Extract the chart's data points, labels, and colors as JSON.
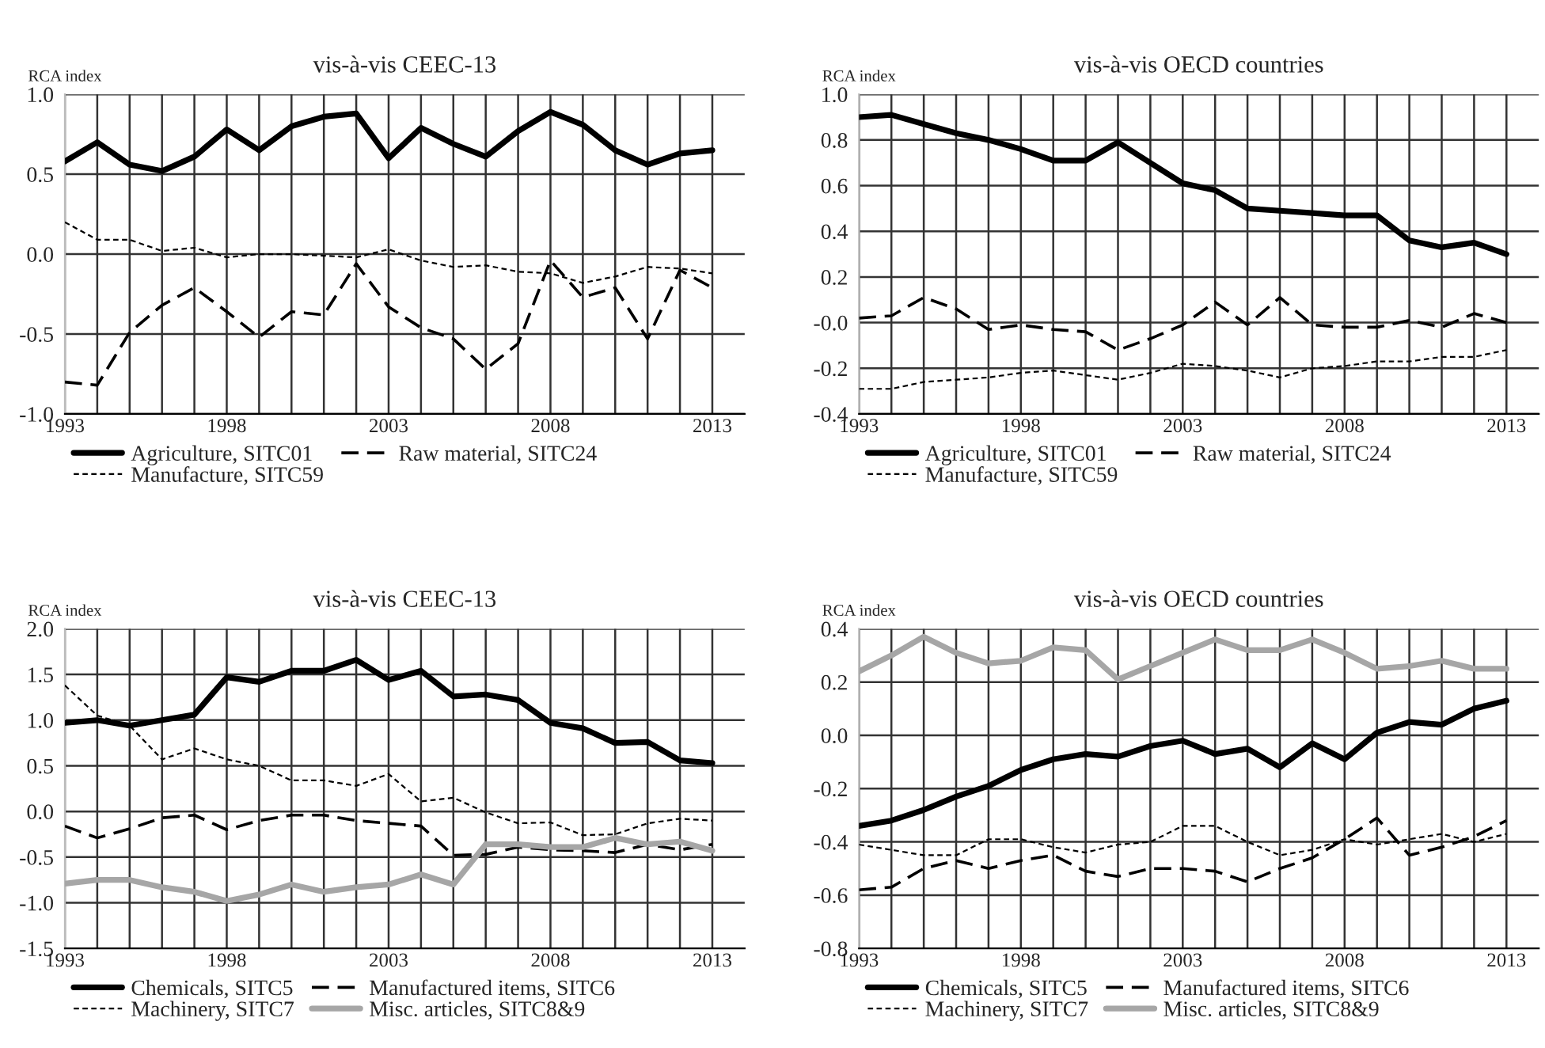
{
  "chart_data": [
    {
      "type": "line",
      "title": "vis-à-vis CEEC-13",
      "ylabel": "RCA index",
      "x": [
        1993,
        1994,
        1995,
        1996,
        1997,
        1998,
        1999,
        2000,
        2001,
        2002,
        2003,
        2004,
        2005,
        2006,
        2007,
        2008,
        2009,
        2010,
        2011,
        2012,
        2013
      ],
      "xlim": [
        1993,
        2014
      ],
      "xticks": [
        {
          "value": 1993,
          "label": "1993"
        },
        {
          "value": 1994,
          "label": null
        },
        {
          "value": 1995,
          "label": null
        },
        {
          "value": 1996,
          "label": null
        },
        {
          "value": 1997,
          "label": null
        },
        {
          "value": 1998,
          "label": "1998"
        },
        {
          "value": 1999,
          "label": null
        },
        {
          "value": 2000,
          "label": null
        },
        {
          "value": 2001,
          "label": null
        },
        {
          "value": 2002,
          "label": null
        },
        {
          "value": 2003,
          "label": "2003"
        },
        {
          "value": 2004,
          "label": null
        },
        {
          "value": 2005,
          "label": null
        },
        {
          "value": 2006,
          "label": null
        },
        {
          "value": 2007,
          "label": null
        },
        {
          "value": 2008,
          "label": "2008"
        },
        {
          "value": 2009,
          "label": null
        },
        {
          "value": 2010,
          "label": null
        },
        {
          "value": 2011,
          "label": null
        },
        {
          "value": 2012,
          "label": null
        },
        {
          "value": 2013,
          "label": "2013"
        }
      ],
      "ylim": [
        -1.0,
        1.0
      ],
      "yticks": [
        {
          "value": -1.0,
          "label": "-1.0"
        },
        {
          "value": -0.5,
          "label": "-0.5"
        },
        {
          "value": 0.0,
          "label": "0.0"
        },
        {
          "value": 0.5,
          "label": "0.5"
        },
        {
          "value": 1.0,
          "label": "1.0"
        }
      ],
      "grid": true,
      "legend": "bottom",
      "series": [
        {
          "name": "Agriculture, SITC01",
          "color": "#000000",
          "line_style": "solid",
          "values": [
            0.58,
            0.7,
            0.56,
            0.52,
            0.61,
            0.78,
            0.65,
            0.8,
            0.86,
            0.88,
            0.6,
            0.79,
            0.69,
            0.61,
            0.77,
            0.89,
            0.81,
            0.65,
            0.56,
            0.63,
            0.65
          ]
        },
        {
          "name": "Raw material, SITC24",
          "color": "#000000",
          "line_style": "dashed",
          "values": [
            -0.8,
            -0.82,
            -0.49,
            -0.32,
            -0.21,
            -0.36,
            -0.52,
            -0.36,
            -0.38,
            -0.06,
            -0.33,
            -0.46,
            -0.53,
            -0.72,
            -0.56,
            -0.04,
            -0.27,
            -0.21,
            -0.53,
            -0.1,
            -0.21
          ]
        },
        {
          "name": "Manufacture, SITC59",
          "color": "#000000",
          "line_style": "dotted",
          "values": [
            0.2,
            0.09,
            0.09,
            0.02,
            0.04,
            -0.02,
            0.0,
            0.0,
            -0.01,
            -0.02,
            0.03,
            -0.04,
            -0.08,
            -0.07,
            -0.11,
            -0.12,
            -0.18,
            -0.14,
            -0.08,
            -0.09,
            -0.12
          ]
        }
      ]
    },
    {
      "type": "line",
      "title": "vis-à-vis OECD countries",
      "ylabel": "RCA index",
      "x": [
        1993,
        1994,
        1995,
        1996,
        1997,
        1998,
        1999,
        2000,
        2001,
        2002,
        2003,
        2004,
        2005,
        2006,
        2007,
        2008,
        2009,
        2010,
        2011,
        2012,
        2013
      ],
      "xlim": [
        1993,
        2014
      ],
      "xticks": [
        {
          "value": 1993,
          "label": "1993"
        },
        {
          "value": 1994,
          "label": null
        },
        {
          "value": 1995,
          "label": null
        },
        {
          "value": 1996,
          "label": null
        },
        {
          "value": 1997,
          "label": null
        },
        {
          "value": 1998,
          "label": "1998"
        },
        {
          "value": 1999,
          "label": null
        },
        {
          "value": 2000,
          "label": null
        },
        {
          "value": 2001,
          "label": null
        },
        {
          "value": 2002,
          "label": null
        },
        {
          "value": 2003,
          "label": "2003"
        },
        {
          "value": 2004,
          "label": null
        },
        {
          "value": 2005,
          "label": null
        },
        {
          "value": 2006,
          "label": null
        },
        {
          "value": 2007,
          "label": null
        },
        {
          "value": 2008,
          "label": "2008"
        },
        {
          "value": 2009,
          "label": null
        },
        {
          "value": 2010,
          "label": null
        },
        {
          "value": 2011,
          "label": null
        },
        {
          "value": 2012,
          "label": null
        },
        {
          "value": 2013,
          "label": "2013"
        }
      ],
      "ylim": [
        -0.4,
        1.0
      ],
      "yticks": [
        {
          "value": -0.4,
          "label": "-0.4"
        },
        {
          "value": -0.2,
          "label": "-0.2"
        },
        {
          "value": 0.0,
          "label": "-0.0"
        },
        {
          "value": 0.2,
          "label": "0.2"
        },
        {
          "value": 0.4,
          "label": "0.4"
        },
        {
          "value": 0.6,
          "label": "0.6"
        },
        {
          "value": 0.8,
          "label": "0.8"
        },
        {
          "value": 1.0,
          "label": "1.0"
        }
      ],
      "grid": true,
      "legend": "bottom",
      "series": [
        {
          "name": "Agriculture, SITC01",
          "color": "#000000",
          "line_style": "solid",
          "values": [
            0.9,
            0.91,
            0.87,
            0.83,
            0.8,
            0.76,
            0.71,
            0.71,
            0.79,
            0.7,
            0.61,
            0.58,
            0.5,
            0.49,
            0.48,
            0.47,
            0.47,
            0.36,
            0.33,
            0.35,
            0.3
          ]
        },
        {
          "name": "Raw material, SITC24",
          "color": "#000000",
          "line_style": "dashed",
          "values": [
            0.02,
            0.03,
            0.11,
            0.06,
            -0.03,
            -0.01,
            -0.03,
            -0.04,
            -0.12,
            -0.07,
            -0.01,
            0.09,
            -0.01,
            0.11,
            -0.01,
            -0.02,
            -0.02,
            0.01,
            -0.02,
            0.04,
            0.0
          ]
        },
        {
          "name": "Manufacture, SITC59",
          "color": "#000000",
          "line_style": "dotted",
          "values": [
            -0.29,
            -0.29,
            -0.26,
            -0.25,
            -0.24,
            -0.22,
            -0.21,
            -0.23,
            -0.25,
            -0.22,
            -0.18,
            -0.19,
            -0.21,
            -0.24,
            -0.2,
            -0.19,
            -0.17,
            -0.17,
            -0.15,
            -0.15,
            -0.12
          ]
        }
      ]
    },
    {
      "type": "line",
      "title": "vis-à-vis CEEC-13",
      "ylabel": "RCA index",
      "x": [
        1993,
        1994,
        1995,
        1996,
        1997,
        1998,
        1999,
        2000,
        2001,
        2002,
        2003,
        2004,
        2005,
        2006,
        2007,
        2008,
        2009,
        2010,
        2011,
        2012,
        2013
      ],
      "xlim": [
        1993,
        2014
      ],
      "xticks": [
        {
          "value": 1993,
          "label": "1993"
        },
        {
          "value": 1994,
          "label": null
        },
        {
          "value": 1995,
          "label": null
        },
        {
          "value": 1996,
          "label": null
        },
        {
          "value": 1997,
          "label": null
        },
        {
          "value": 1998,
          "label": "1998"
        },
        {
          "value": 1999,
          "label": null
        },
        {
          "value": 2000,
          "label": null
        },
        {
          "value": 2001,
          "label": null
        },
        {
          "value": 2002,
          "label": null
        },
        {
          "value": 2003,
          "label": "2003"
        },
        {
          "value": 2004,
          "label": null
        },
        {
          "value": 2005,
          "label": null
        },
        {
          "value": 2006,
          "label": null
        },
        {
          "value": 2007,
          "label": null
        },
        {
          "value": 2008,
          "label": "2008"
        },
        {
          "value": 2009,
          "label": null
        },
        {
          "value": 2010,
          "label": null
        },
        {
          "value": 2011,
          "label": null
        },
        {
          "value": 2012,
          "label": null
        },
        {
          "value": 2013,
          "label": "2013"
        }
      ],
      "ylim": [
        -1.5,
        2.0
      ],
      "yticks": [
        {
          "value": -1.5,
          "label": "-1.5"
        },
        {
          "value": -1.0,
          "label": "-1.0"
        },
        {
          "value": -0.5,
          "label": "-0.5"
        },
        {
          "value": 0.0,
          "label": "0.0"
        },
        {
          "value": 0.5,
          "label": "0.5"
        },
        {
          "value": 1.0,
          "label": "1.0"
        },
        {
          "value": 1.5,
          "label": "1.5"
        },
        {
          "value": 2.0,
          "label": "2.0"
        }
      ],
      "grid": true,
      "legend": "bottom",
      "series": [
        {
          "name": "Chemicals, SITC5",
          "color": "#000000",
          "line_style": "solid",
          "values": [
            0.97,
            1.0,
            0.94,
            1.0,
            1.06,
            1.47,
            1.42,
            1.54,
            1.54,
            1.66,
            1.44,
            1.54,
            1.26,
            1.28,
            1.22,
            0.97,
            0.91,
            0.75,
            0.76,
            0.56,
            0.53
          ]
        },
        {
          "name": "Manufactured items, SITC6",
          "color": "#000000",
          "line_style": "dashed",
          "values": [
            -0.16,
            -0.29,
            -0.19,
            -0.07,
            -0.04,
            -0.2,
            -0.1,
            -0.04,
            -0.04,
            -0.1,
            -0.13,
            -0.16,
            -0.48,
            -0.47,
            -0.39,
            -0.42,
            -0.43,
            -0.45,
            -0.36,
            -0.42,
            -0.36
          ]
        },
        {
          "name": "Machinery, SITC7",
          "color": "#000000",
          "line_style": "dotted",
          "values": [
            1.38,
            1.05,
            0.94,
            0.57,
            0.69,
            0.57,
            0.5,
            0.34,
            0.34,
            0.28,
            0.41,
            0.11,
            0.15,
            -0.01,
            -0.13,
            -0.12,
            -0.26,
            -0.25,
            -0.13,
            -0.08,
            -0.1
          ]
        },
        {
          "name": "Misc. articles, SITC8&9",
          "color": "#a6a6a6",
          "line_style": "solid",
          "values": [
            -0.79,
            -0.75,
            -0.75,
            -0.83,
            -0.88,
            -0.98,
            -0.91,
            -0.8,
            -0.88,
            -0.83,
            -0.8,
            -0.69,
            -0.8,
            -0.36,
            -0.36,
            -0.39,
            -0.39,
            -0.29,
            -0.36,
            -0.33,
            -0.43
          ]
        }
      ]
    },
    {
      "type": "line",
      "title": "vis-à-vis OECD countries",
      "ylabel": "RCA index",
      "x": [
        1993,
        1994,
        1995,
        1996,
        1997,
        1998,
        1999,
        2000,
        2001,
        2002,
        2003,
        2004,
        2005,
        2006,
        2007,
        2008,
        2009,
        2010,
        2011,
        2012,
        2013
      ],
      "xlim": [
        1993,
        2014
      ],
      "xticks": [
        {
          "value": 1993,
          "label": "1993"
        },
        {
          "value": 1994,
          "label": null
        },
        {
          "value": 1995,
          "label": null
        },
        {
          "value": 1996,
          "label": null
        },
        {
          "value": 1997,
          "label": null
        },
        {
          "value": 1998,
          "label": "1998"
        },
        {
          "value": 1999,
          "label": null
        },
        {
          "value": 2000,
          "label": null
        },
        {
          "value": 2001,
          "label": null
        },
        {
          "value": 2002,
          "label": null
        },
        {
          "value": 2003,
          "label": "2003"
        },
        {
          "value": 2004,
          "label": null
        },
        {
          "value": 2005,
          "label": null
        },
        {
          "value": 2006,
          "label": null
        },
        {
          "value": 2007,
          "label": null
        },
        {
          "value": 2008,
          "label": "2008"
        },
        {
          "value": 2009,
          "label": null
        },
        {
          "value": 2010,
          "label": null
        },
        {
          "value": 2011,
          "label": null
        },
        {
          "value": 2012,
          "label": null
        },
        {
          "value": 2013,
          "label": "2013"
        }
      ],
      "ylim": [
        -0.8,
        0.4
      ],
      "yticks": [
        {
          "value": -0.8,
          "label": "-0.8"
        },
        {
          "value": -0.6,
          "label": "-0.6"
        },
        {
          "value": -0.4,
          "label": "-0.4"
        },
        {
          "value": -0.2,
          "label": "-0.2"
        },
        {
          "value": 0.0,
          "label": "0.0"
        },
        {
          "value": 0.2,
          "label": "0.2"
        },
        {
          "value": 0.4,
          "label": "0.4"
        }
      ],
      "grid": true,
      "legend": "bottom",
      "series": [
        {
          "name": "Chemicals, SITC5",
          "color": "#000000",
          "line_style": "solid",
          "values": [
            -0.34,
            -0.32,
            -0.28,
            -0.23,
            -0.19,
            -0.13,
            -0.09,
            -0.07,
            -0.08,
            -0.04,
            -0.02,
            -0.07,
            -0.05,
            -0.12,
            -0.03,
            -0.09,
            0.01,
            0.05,
            0.04,
            0.1,
            0.13
          ]
        },
        {
          "name": "Manufactured items, SITC6",
          "color": "#000000",
          "line_style": "dashed",
          "values": [
            -0.58,
            -0.57,
            -0.5,
            -0.47,
            -0.5,
            -0.47,
            -0.45,
            -0.51,
            -0.53,
            -0.5,
            -0.5,
            -0.51,
            -0.55,
            -0.5,
            -0.46,
            -0.39,
            -0.31,
            -0.45,
            -0.42,
            -0.38,
            -0.32
          ]
        },
        {
          "name": "Machinery, SITC7",
          "color": "#000000",
          "line_style": "dotted",
          "values": [
            -0.41,
            -0.43,
            -0.45,
            -0.45,
            -0.39,
            -0.39,
            -0.42,
            -0.44,
            -0.41,
            -0.4,
            -0.34,
            -0.34,
            -0.4,
            -0.45,
            -0.43,
            -0.39,
            -0.41,
            -0.39,
            -0.37,
            -0.4,
            -0.37
          ]
        },
        {
          "name": "Misc. articles, SITC8&9",
          "color": "#a6a6a6",
          "line_style": "solid",
          "values": [
            0.24,
            0.3,
            0.37,
            0.31,
            0.27,
            0.28,
            0.33,
            0.32,
            0.21,
            0.26,
            0.31,
            0.36,
            0.32,
            0.32,
            0.36,
            0.31,
            0.25,
            0.26,
            0.28,
            0.25,
            0.25
          ]
        }
      ]
    }
  ]
}
